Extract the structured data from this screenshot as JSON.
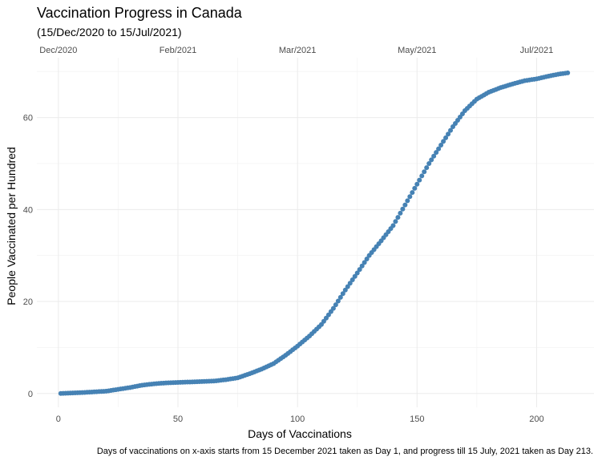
{
  "chart_data": {
    "type": "scatter",
    "title": "Vaccination Progress in Canada",
    "subtitle": "(15/Dec/2020 to 15/Jul/2021)",
    "xlabel": "Days of Vaccinations",
    "ylabel": "People Vaccinated per Hundred",
    "caption": "Days of vaccinations on x-axis starts from 15 December 2021 taken as Day 1,  and progress till 15 July, 2021 taken as Day 213.",
    "xlim": [
      -9,
      224
    ],
    "ylim": [
      -3,
      73
    ],
    "x_ticks": [
      0,
      50,
      100,
      150,
      200
    ],
    "y_ticks": [
      0,
      20,
      40,
      60
    ],
    "top_axis": [
      {
        "label": "Dec/2020",
        "x": 0
      },
      {
        "label": "Feb/2021",
        "x": 50
      },
      {
        "label": "Mar/2021",
        "x": 100
      },
      {
        "label": "May/2021",
        "x": 150
      },
      {
        "label": "Jul/2021",
        "x": 200
      }
    ],
    "grid": true,
    "point_color": "#4682B4",
    "points": [
      [
        1,
        0.0
      ],
      [
        10,
        0.2
      ],
      [
        20,
        0.5
      ],
      [
        25,
        0.9
      ],
      [
        30,
        1.3
      ],
      [
        35,
        1.8
      ],
      [
        40,
        2.1
      ],
      [
        45,
        2.3
      ],
      [
        50,
        2.4
      ],
      [
        55,
        2.5
      ],
      [
        60,
        2.6
      ],
      [
        65,
        2.7
      ],
      [
        70,
        3.0
      ],
      [
        75,
        3.4
      ],
      [
        80,
        4.3
      ],
      [
        85,
        5.3
      ],
      [
        90,
        6.5
      ],
      [
        95,
        8.3
      ],
      [
        100,
        10.3
      ],
      [
        105,
        12.5
      ],
      [
        110,
        15.0
      ],
      [
        115,
        18.5
      ],
      [
        120,
        22.5
      ],
      [
        125,
        26.2
      ],
      [
        130,
        30.0
      ],
      [
        135,
        33.2
      ],
      [
        140,
        36.5
      ],
      [
        145,
        41.0
      ],
      [
        150,
        45.5
      ],
      [
        155,
        50.0
      ],
      [
        160,
        54.0
      ],
      [
        165,
        58.0
      ],
      [
        170,
        61.5
      ],
      [
        175,
        64.0
      ],
      [
        180,
        65.5
      ],
      [
        185,
        66.5
      ],
      [
        190,
        67.3
      ],
      [
        195,
        68.0
      ],
      [
        200,
        68.4
      ],
      [
        205,
        69.0
      ],
      [
        210,
        69.5
      ],
      [
        213,
        69.7
      ]
    ]
  }
}
